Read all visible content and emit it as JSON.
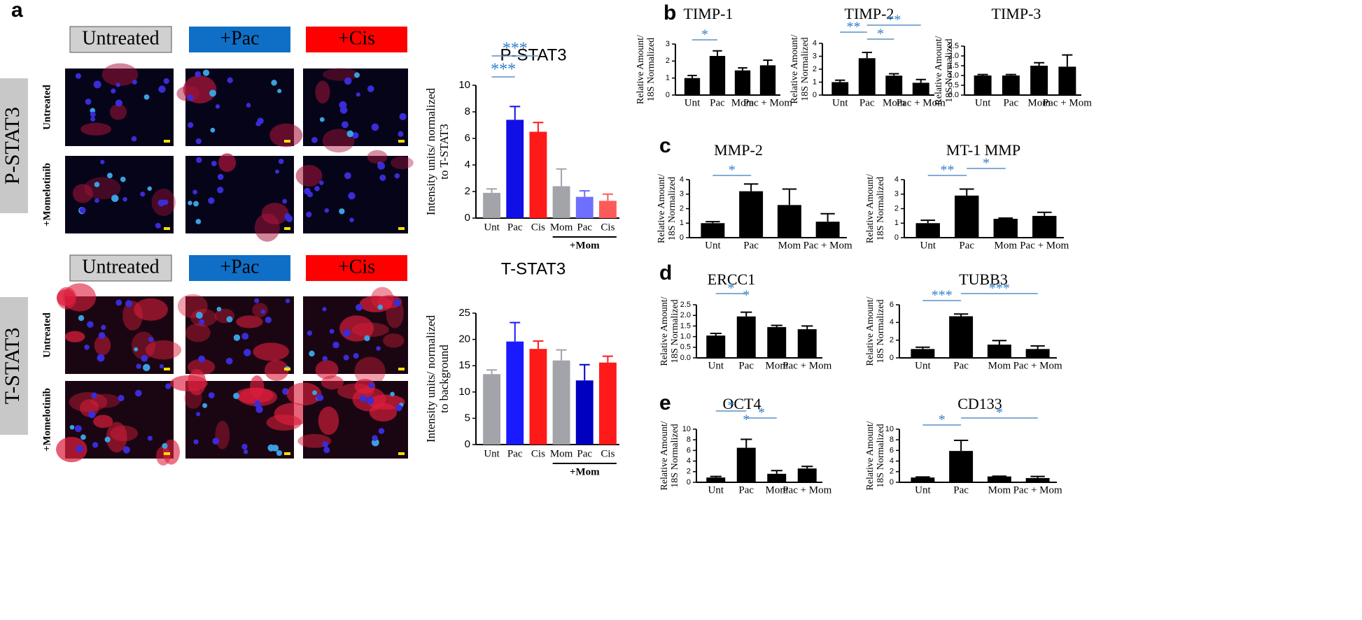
{
  "panel_labels": [
    "a",
    "b",
    "c",
    "d",
    "e"
  ],
  "microscopy": [
    {
      "stain": "P-STAT3",
      "columns": [
        "Untreated",
        "+Pac",
        "+Cis"
      ],
      "rows": [
        "Untreated",
        "+Momelotinib"
      ]
    },
    {
      "stain": "T-STAT3",
      "columns": [
        "Untreated",
        "+Pac",
        "+Cis"
      ],
      "rows": [
        "Untreated",
        "+Momelotinib"
      ]
    }
  ],
  "chart_data": [
    {
      "type": "bar",
      "title": "P-STAT3",
      "y_label": [
        "Intensity units/ normalized",
        "to T-STAT3"
      ],
      "categories": [
        "Unt",
        "Pac",
        "Cis",
        "Mom",
        "Pac",
        "Cis"
      ],
      "values": [
        1.9,
        7.4,
        6.5,
        2.4,
        1.6,
        1.3
      ],
      "errors": [
        0.3,
        1.0,
        0.7,
        1.3,
        0.45,
        0.5
      ],
      "colors": [
        "#a3a3aa",
        "#1010e6",
        "#ff1a1a",
        "#a3a3aa",
        "#6f6fff",
        "#ff5a5a"
      ],
      "ylim": [
        0,
        10
      ],
      "yticks": [
        0,
        2,
        4,
        6,
        8,
        10
      ],
      "group_label": "+Mom",
      "annotations": [
        {
          "text": "***",
          "between": [
            "Unt",
            "Pac"
          ]
        },
        {
          "text": "***",
          "between": [
            "Unt",
            "Cis"
          ]
        }
      ]
    },
    {
      "type": "bar",
      "title": "T-STAT3",
      "y_label": [
        "Intensity units/ normalized",
        "to background"
      ],
      "categories": [
        "Unt",
        "Pac",
        "Cis",
        "Mom",
        "Pac",
        "Cis"
      ],
      "values": [
        13.4,
        19.6,
        18.2,
        16.0,
        12.2,
        15.6
      ],
      "errors": [
        0.8,
        3.6,
        1.5,
        2.0,
        3.0,
        1.2
      ],
      "colors": [
        "#a3a3aa",
        "#1a1aff",
        "#ff1a1a",
        "#a3a3aa",
        "#0000c0",
        "#ff1a1a"
      ],
      "ylim": [
        0,
        25
      ],
      "yticks": [
        0,
        5,
        10,
        15,
        20,
        25
      ],
      "group_label": "+Mom"
    },
    {
      "type": "bar",
      "title": "TIMP-1",
      "y_label": [
        "Relative Amount/",
        "18S Normalized"
      ],
      "categories": [
        "Unt",
        "Pac",
        "Mom",
        "Pac + Mom"
      ],
      "values": [
        1.0,
        2.3,
        1.45,
        1.75
      ],
      "errors": [
        0.15,
        0.3,
        0.15,
        0.3
      ],
      "color": "#000000",
      "ylim": [
        0,
        3
      ],
      "yticks": [
        0,
        1,
        2,
        3
      ],
      "annotations": [
        {
          "text": "*",
          "between": [
            "Unt",
            "Pac"
          ]
        }
      ]
    },
    {
      "type": "bar",
      "title": "TIMP-2",
      "y_label": [
        "Relative Amount/",
        "18S Normalized"
      ],
      "categories": [
        "Unt",
        "Pac",
        "Mom",
        "Pac + Mom"
      ],
      "values": [
        1.0,
        2.85,
        1.5,
        0.95
      ],
      "errors": [
        0.15,
        0.45,
        0.15,
        0.25
      ],
      "color": "#000000",
      "ylim": [
        0,
        4
      ],
      "yticks": [
        0,
        1,
        2,
        3,
        4
      ],
      "annotations": [
        {
          "text": "*",
          "between": [
            "Pac",
            "Mom"
          ]
        },
        {
          "text": "**",
          "between": [
            "Unt",
            "Pac"
          ]
        },
        {
          "text": "**",
          "between": [
            "Pac",
            "Pac + Mom"
          ]
        }
      ]
    },
    {
      "type": "bar",
      "title": "TIMP-3",
      "y_label": [
        "Relative Amount/",
        "18S Normalized"
      ],
      "categories": [
        "Unt",
        "Pac",
        "Mom",
        "Pac + Mom"
      ],
      "values": [
        1.0,
        1.0,
        1.5,
        1.45
      ],
      "errors": [
        0.05,
        0.05,
        0.15,
        0.6
      ],
      "color": "#000000",
      "ylim": [
        0,
        2.5
      ],
      "yticks": [
        {
          "value": 0,
          "label": "0.0"
        },
        0.5,
        {
          "value": 1,
          "label": "1.0"
        },
        1.5,
        {
          "value": 2,
          "label": "2.0"
        },
        2.5
      ]
    },
    {
      "type": "bar",
      "title": "MMP-2",
      "y_label": [
        "Relative Amount/",
        "18S Normalized"
      ],
      "categories": [
        "Unt",
        "Pac",
        "Mom",
        "Pac + Mom"
      ],
      "values": [
        1.0,
        3.2,
        2.25,
        1.1
      ],
      "errors": [
        0.1,
        0.5,
        1.1,
        0.55
      ],
      "color": "#000000",
      "ylim": [
        0,
        4
      ],
      "yticks": [
        0,
        1,
        2,
        3,
        4
      ],
      "annotations": [
        {
          "text": "*",
          "between": [
            "Unt",
            "Pac"
          ]
        }
      ]
    },
    {
      "type": "bar",
      "title": "MT-1 MMP",
      "y_label": [
        "Relative Amount/",
        "18S Normalized"
      ],
      "categories": [
        "Unt",
        "Pac",
        "Mom",
        "Pac + Mom"
      ],
      "values": [
        1.0,
        2.9,
        1.3,
        1.5
      ],
      "errors": [
        0.2,
        0.45,
        0.05,
        0.25
      ],
      "color": "#000000",
      "ylim": [
        0,
        4
      ],
      "yticks": [
        0,
        1,
        2,
        3,
        4
      ],
      "annotations": [
        {
          "text": "**",
          "between": [
            "Unt",
            "Pac"
          ]
        },
        {
          "text": "*",
          "between": [
            "Pac",
            "Mom"
          ]
        }
      ]
    },
    {
      "type": "bar",
      "title": "ERCC1",
      "y_label": [
        "Relative Amount/",
        "18S Normalized"
      ],
      "categories": [
        "Unt",
        "Pac",
        "Mom",
        "Pac + Mom"
      ],
      "values": [
        1.05,
        1.95,
        1.45,
        1.35
      ],
      "errors": [
        0.1,
        0.2,
        0.08,
        0.15
      ],
      "color": "#000000",
      "ylim": [
        0,
        2.5
      ],
      "yticks": [
        {
          "value": 0,
          "label": "0.0"
        },
        0.5,
        {
          "value": 1,
          "label": "1.0"
        },
        1.5,
        {
          "value": 2,
          "label": "2.0"
        },
        2.5
      ],
      "annotations": [
        {
          "text": "*",
          "between": [
            "Pac"
          ]
        },
        {
          "text": "*",
          "between": [
            "Unt",
            "Pac"
          ]
        }
      ]
    },
    {
      "type": "bar",
      "title": "TUBB3",
      "y_label": [
        "Relative Amount/",
        "18S Normalized"
      ],
      "categories": [
        "Unt",
        "Pac",
        "Mom",
        "Pac + Mom"
      ],
      "values": [
        1.0,
        4.7,
        1.5,
        1.0
      ],
      "errors": [
        0.2,
        0.25,
        0.45,
        0.35
      ],
      "color": "#000000",
      "ylim": [
        0,
        6
      ],
      "yticks": [
        0,
        2,
        4,
        6
      ],
      "annotations": [
        {
          "text": "***",
          "between": [
            "Unt",
            "Pac"
          ]
        },
        {
          "text": "***",
          "between": [
            "Pac",
            "Pac + Mom"
          ]
        }
      ]
    },
    {
      "type": "bar",
      "title": "OCT4",
      "y_label": [
        "Relative Amount/",
        "18S Normalized"
      ],
      "categories": [
        "Unt",
        "Pac",
        "Mom",
        "Pac + Mom"
      ],
      "values": [
        0.9,
        6.5,
        1.6,
        2.6
      ],
      "errors": [
        0.2,
        1.6,
        0.6,
        0.4
      ],
      "color": "#000000",
      "ylim": [
        0,
        10
      ],
      "yticks": [
        0,
        2,
        4,
        6,
        8,
        10
      ],
      "annotations": [
        {
          "text": "*",
          "between": [
            "Pac"
          ]
        },
        {
          "text": "*",
          "between": [
            "Pac",
            "Mom"
          ]
        },
        {
          "text": "*",
          "between": [
            "Unt",
            "Pac"
          ]
        }
      ]
    },
    {
      "type": "bar",
      "title": "CD133",
      "y_label": [
        "Relative Amount/",
        "18S Normalized"
      ],
      "categories": [
        "Unt",
        "Pac",
        "Mom",
        "Pac + Mom"
      ],
      "values": [
        0.9,
        5.9,
        1.1,
        0.8
      ],
      "errors": [
        0.1,
        2.0,
        0.05,
        0.3
      ],
      "color": "#000000",
      "ylim": [
        0,
        10
      ],
      "yticks": [
        0,
        2,
        4,
        6,
        8,
        10
      ],
      "annotations": [
        {
          "text": "*",
          "between": [
            "Unt",
            "Pac"
          ]
        },
        {
          "text": "*",
          "between": [
            "Pac",
            "Pac + Mom"
          ]
        }
      ]
    }
  ]
}
